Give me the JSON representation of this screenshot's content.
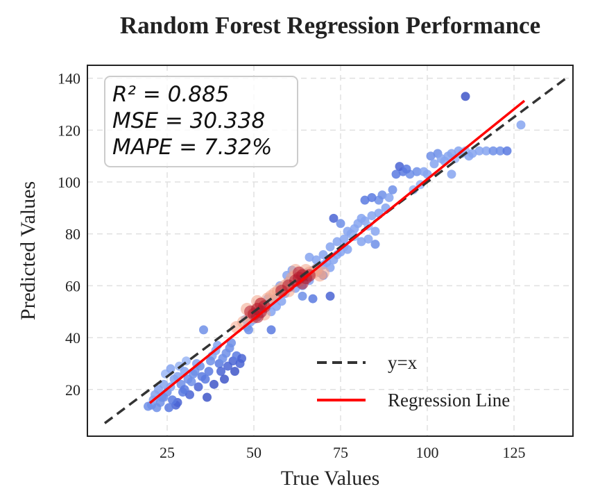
{
  "chart_data": {
    "type": "scatter",
    "title": "Random Forest Regression Performance",
    "xlabel": "True Values",
    "ylabel": "Predicted Values",
    "xlim": [
      2,
      142
    ],
    "ylim": [
      2,
      145
    ],
    "xticks": [
      25,
      50,
      75,
      100,
      125
    ],
    "yticks": [
      20,
      40,
      60,
      80,
      100,
      120,
      140
    ],
    "grid": true,
    "legend_position": "bottom-right",
    "stats": {
      "r2": "R² = 0.885",
      "mse": "MSE = 30.338",
      "mape": "MAPE = 7.32%"
    },
    "series": [
      {
        "name": "y=x",
        "kind": "line",
        "color": "#333333",
        "dash": true,
        "x": [
          7,
          140
        ],
        "y": [
          7,
          140
        ]
      },
      {
        "name": "Regression Line",
        "kind": "line",
        "color": "#ff0000",
        "x": [
          20,
          128
        ],
        "y": [
          14.8,
          131.3
        ]
      }
    ],
    "points": [
      [
        19.5,
        13.5
      ],
      [
        20.5,
        14
      ],
      [
        21,
        16
      ],
      [
        22,
        13
      ],
      [
        21.5,
        18
      ],
      [
        23,
        15
      ],
      [
        24,
        17
      ],
      [
        22.5,
        20
      ],
      [
        24,
        22
      ],
      [
        25,
        19
      ],
      [
        24.5,
        26
      ],
      [
        26,
        21
      ],
      [
        27,
        24
      ],
      [
        26,
        28
      ],
      [
        28,
        25
      ],
      [
        28.5,
        29
      ],
      [
        29,
        22
      ],
      [
        30,
        27
      ],
      [
        30.5,
        31
      ],
      [
        31,
        24
      ],
      [
        29.5,
        19
      ],
      [
        32,
        23
      ],
      [
        33,
        27
      ],
      [
        33.5,
        30
      ],
      [
        34,
        21
      ],
      [
        31.5,
        18
      ],
      [
        35,
        25
      ],
      [
        35.5,
        43
      ],
      [
        36,
        24
      ],
      [
        37,
        27
      ],
      [
        36.5,
        17
      ],
      [
        38,
        33
      ],
      [
        38.5,
        22
      ],
      [
        39,
        35
      ],
      [
        40,
        30
      ],
      [
        40.5,
        27
      ],
      [
        41,
        32
      ],
      [
        42,
        34
      ],
      [
        42.5,
        29
      ],
      [
        43,
        36
      ],
      [
        44,
        31
      ],
      [
        44.5,
        27
      ],
      [
        45,
        33
      ],
      [
        46,
        30
      ],
      [
        41.5,
        24
      ],
      [
        39.5,
        37
      ],
      [
        43.5,
        38
      ],
      [
        46.5,
        32
      ],
      [
        37.5,
        31
      ],
      [
        34.5,
        29
      ],
      [
        27.5,
        14
      ],
      [
        25.5,
        13
      ],
      [
        23.5,
        17
      ],
      [
        32.5,
        26
      ],
      [
        30,
        20
      ],
      [
        28,
        15
      ],
      [
        26.5,
        16
      ],
      [
        48,
        44
      ],
      [
        49,
        46
      ],
      [
        50,
        47
      ],
      [
        51,
        48
      ],
      [
        52,
        50
      ],
      [
        53,
        51
      ],
      [
        54,
        52
      ],
      [
        48.5,
        43
      ],
      [
        47.5,
        47
      ],
      [
        55,
        54
      ],
      [
        56,
        55
      ],
      [
        57,
        56
      ],
      [
        58,
        58
      ],
      [
        59,
        57
      ],
      [
        60,
        59
      ],
      [
        61,
        61
      ],
      [
        62,
        62
      ],
      [
        63,
        61
      ],
      [
        64,
        63
      ],
      [
        65,
        65
      ],
      [
        66,
        64
      ],
      [
        67,
        66
      ],
      [
        68,
        67
      ],
      [
        52,
        49
      ],
      [
        53.5,
        53
      ],
      [
        55,
        50
      ],
      [
        56.5,
        52
      ],
      [
        50.5,
        51
      ],
      [
        54,
        55
      ],
      [
        58,
        54
      ],
      [
        60,
        62
      ],
      [
        62,
        59
      ],
      [
        64,
        60
      ],
      [
        66,
        62
      ],
      [
        69,
        65
      ],
      [
        70,
        64
      ],
      [
        71,
        69
      ],
      [
        72,
        67
      ],
      [
        73,
        70
      ],
      [
        74,
        72
      ],
      [
        75,
        73
      ],
      [
        76,
        75
      ],
      [
        77,
        74
      ],
      [
        70,
        72
      ],
      [
        72,
        75
      ],
      [
        74,
        77
      ],
      [
        76,
        78
      ],
      [
        78,
        80
      ],
      [
        79,
        82
      ],
      [
        80,
        84
      ],
      [
        81,
        86
      ],
      [
        82,
        85
      ],
      [
        83,
        83
      ],
      [
        84,
        87
      ],
      [
        85,
        81
      ],
      [
        86,
        88
      ],
      [
        73,
        86
      ],
      [
        75,
        84
      ],
      [
        77,
        81
      ],
      [
        79,
        79
      ],
      [
        81,
        77
      ],
      [
        83,
        78
      ],
      [
        85,
        76
      ],
      [
        70,
        68
      ],
      [
        68,
        70
      ],
      [
        66,
        71
      ],
      [
        64,
        56
      ],
      [
        67,
        55
      ],
      [
        72,
        56
      ],
      [
        55,
        43
      ],
      [
        57.5,
        60
      ],
      [
        59.5,
        64
      ],
      [
        61,
        66
      ],
      [
        87,
        95
      ],
      [
        86,
        93
      ],
      [
        88,
        90
      ],
      [
        89,
        94
      ],
      [
        90,
        97
      ],
      [
        91,
        103
      ],
      [
        93,
        104
      ],
      [
        95,
        103
      ],
      [
        97,
        104
      ],
      [
        99,
        104
      ],
      [
        101,
        110
      ],
      [
        103,
        111
      ],
      [
        104,
        109
      ],
      [
        106,
        110
      ],
      [
        108,
        109
      ],
      [
        110,
        111
      ],
      [
        111,
        112
      ],
      [
        112,
        110
      ],
      [
        113,
        111
      ],
      [
        115,
        112
      ],
      [
        117,
        112
      ],
      [
        119,
        112
      ],
      [
        121,
        112
      ],
      [
        123,
        112
      ],
      [
        100,
        103
      ],
      [
        102,
        107
      ],
      [
        105,
        108
      ],
      [
        107,
        103
      ],
      [
        96,
        97
      ],
      [
        98,
        99
      ],
      [
        111,
        133
      ],
      [
        127,
        122
      ],
      [
        109,
        112
      ],
      [
        107,
        111
      ],
      [
        92,
        106
      ],
      [
        94,
        105
      ],
      [
        84,
        94
      ],
      [
        82,
        93
      ]
    ],
    "density_points": [
      [
        45,
        44
      ],
      [
        47,
        46
      ],
      [
        49,
        48
      ],
      [
        50,
        50
      ],
      [
        51,
        51
      ],
      [
        52,
        53
      ],
      [
        53,
        52
      ],
      [
        54,
        55
      ],
      [
        55,
        56
      ],
      [
        56,
        57
      ],
      [
        57,
        58
      ],
      [
        58,
        59
      ],
      [
        59,
        60
      ],
      [
        60,
        61
      ],
      [
        61,
        63
      ],
      [
        62,
        64
      ],
      [
        63,
        62
      ],
      [
        64,
        64
      ],
      [
        65,
        66
      ],
      [
        66,
        65
      ],
      [
        67,
        65
      ],
      [
        68,
        66
      ],
      [
        69,
        64
      ],
      [
        70,
        65
      ],
      [
        48,
        51
      ],
      [
        50,
        48
      ],
      [
        51,
        54
      ],
      [
        53,
        49
      ],
      [
        60,
        58
      ],
      [
        62,
        66
      ]
    ],
    "density_core": [
      [
        49,
        50
      ],
      [
        50,
        49
      ],
      [
        51,
        51
      ],
      [
        52,
        50
      ],
      [
        53,
        52
      ],
      [
        51,
        48
      ],
      [
        52,
        53
      ],
      [
        62,
        62
      ],
      [
        63,
        63
      ],
      [
        64,
        64
      ],
      [
        65,
        63
      ],
      [
        66,
        64
      ],
      [
        63,
        65
      ],
      [
        64,
        61
      ],
      [
        60,
        60
      ],
      [
        58,
        58
      ]
    ]
  }
}
